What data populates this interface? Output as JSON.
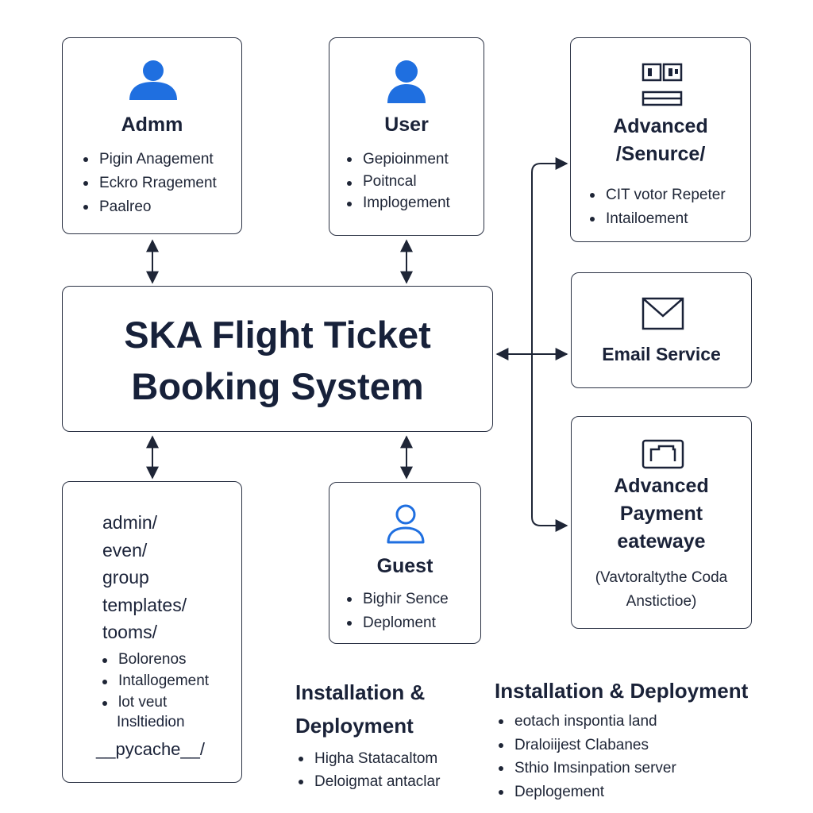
{
  "admin": {
    "title": "Admm",
    "items": [
      "Pigin Anagement",
      "Eckro Rragement",
      "Paalreo"
    ]
  },
  "user": {
    "title": "User",
    "items": [
      "Gepioinment",
      "Poitncal",
      "Implogement"
    ]
  },
  "advanced_security": {
    "title_line1": "Advanced",
    "title_line2": "/Senurce/",
    "items": [
      "CIT votor Repeter",
      "Intailoement"
    ]
  },
  "email": {
    "title": "Email Service"
  },
  "payment": {
    "title_lines": [
      "Advanced",
      "Payment",
      "eatewaye"
    ],
    "note_line1": "(Vavtoraltythe Coda",
    "note_line2": "Anstictioe)"
  },
  "main": {
    "title_line1": "SKA Flight Ticket",
    "title_line2": "Booking System"
  },
  "directory": {
    "dirs": [
      "admin/",
      "even/",
      "group",
      "templates/",
      "tooms/"
    ],
    "items": [
      "Bolorenos",
      "Intallogement",
      "lot veut"
    ],
    "sub": "Insltiedion",
    "pycache": "__pycache__/"
  },
  "guest": {
    "title": "Guest",
    "items": [
      "Bighir Sence",
      "Deploment"
    ]
  },
  "install_left": {
    "title_line1": "Installation &",
    "title_line2": "Deployment",
    "items": [
      "Higha Statacaltom",
      "Deloigmat antaclar"
    ]
  },
  "install_right": {
    "title": "Installation & Deployment",
    "items": [
      "eotach inspontia land",
      "Draloiijest Clabanes",
      "Sthio Imsinpation server",
      "Deplogement"
    ]
  },
  "colors": {
    "icon_blue": "#1f6fe0",
    "outline": "#2b3244",
    "text": "#1a2238"
  }
}
